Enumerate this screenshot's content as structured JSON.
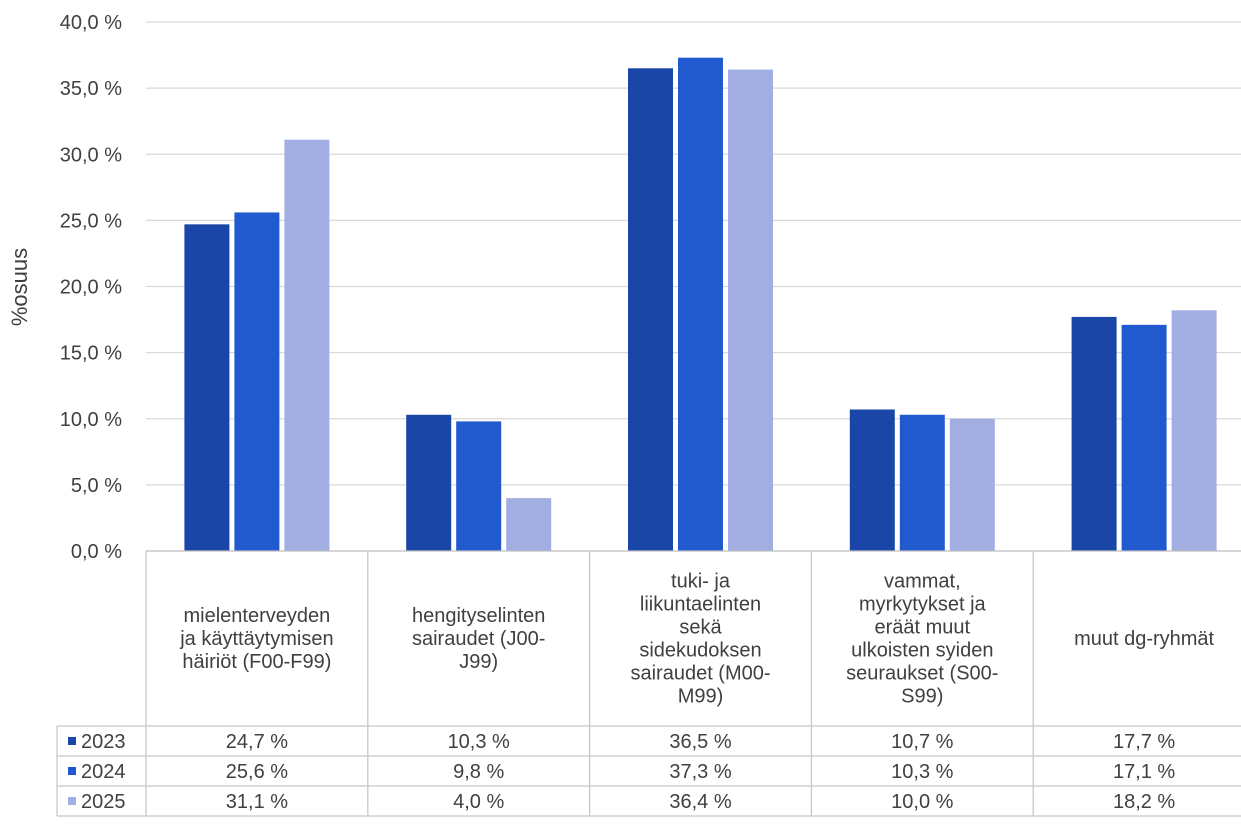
{
  "chart_data": {
    "type": "bar",
    "title": "",
    "xlabel": "",
    "ylabel": "%osuus",
    "ylim": [
      0,
      40
    ],
    "y_ticks": [
      "0,0 %",
      "5,0 %",
      "10,0 %",
      "15,0 %",
      "20,0 %",
      "25,0 %",
      "30,0 %",
      "35,0 %",
      "40,0 %"
    ],
    "grid": true,
    "legend": "data-table",
    "categories": [
      [
        "mielenterveyden",
        "ja käyttäytymisen",
        "häiriöt (F00-F99)"
      ],
      [
        "hengityselinten",
        "sairaudet (J00-",
        "J99)"
      ],
      [
        "tuki- ja",
        "liikuntaelinten",
        "sekä",
        "sidekudoksen",
        "sairaudet (M00-",
        "M99)"
      ],
      [
        "vammat,",
        "myrkytykset ja",
        "eräät muut",
        "ulkoisten syiden",
        "seuraukset (S00-",
        "S99)"
      ],
      [
        "muut dg-ryhmät"
      ]
    ],
    "series": [
      {
        "name": "2023",
        "color": "#1a46a8",
        "values": [
          24.7,
          10.3,
          36.5,
          10.7,
          17.7
        ],
        "labels": [
          "24,7 %",
          "10,3 %",
          "36,5 %",
          "10,7 %",
          "17,7 %"
        ]
      },
      {
        "name": "2024",
        "color": "#2159cf",
        "values": [
          25.6,
          9.8,
          37.3,
          10.3,
          17.1
        ],
        "labels": [
          "25,6 %",
          "9,8 %",
          "37,3 %",
          "10,3 %",
          "17,1 %"
        ]
      },
      {
        "name": "2025",
        "color": "#a2ade2",
        "values": [
          31.1,
          4.0,
          36.4,
          10.0,
          18.2
        ],
        "labels": [
          "31,1 %",
          "4,0 %",
          "36,4 %",
          "10,0 %",
          "18,2 %"
        ]
      }
    ]
  }
}
